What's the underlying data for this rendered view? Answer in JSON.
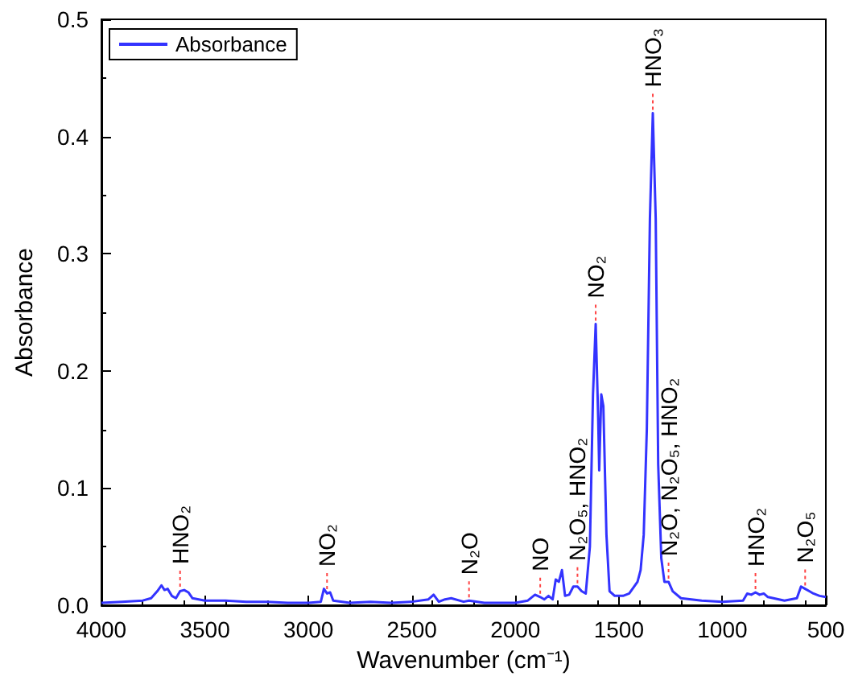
{
  "chart_data": {
    "type": "line",
    "xlabel": "Wavenumber (cm⁻¹)",
    "ylabel": "Absorbance",
    "xlim": [
      4000,
      500
    ],
    "xticks": [
      4000,
      3500,
      3000,
      2500,
      2000,
      1500,
      1000,
      500
    ],
    "ylim": [
      0,
      0.5
    ],
    "yticks": [
      {
        "value": 0,
        "label": "0.0"
      },
      {
        "value": 0.1,
        "label": "0.1"
      },
      {
        "value": 0.2,
        "label": "0.2"
      },
      {
        "value": 0.3,
        "label": "0.3"
      },
      {
        "value": 0.4,
        "label": "0.4"
      },
      {
        "value": 0.5,
        "label": "0.5"
      }
    ],
    "grid": false,
    "legend": "top left",
    "marker": "none",
    "line_style": "solid",
    "series": [
      {
        "name": "Absorbance",
        "color": "#3333ff",
        "x": [
          4000,
          3900,
          3800,
          3760,
          3730,
          3710,
          3695,
          3680,
          3660,
          3640,
          3620,
          3600,
          3580,
          3560,
          3500,
          3400,
          3300,
          3200,
          3100,
          3000,
          2940,
          2925,
          2910,
          2895,
          2880,
          2800,
          2700,
          2600,
          2500,
          2420,
          2395,
          2370,
          2340,
          2310,
          2250,
          2224,
          2150,
          2000,
          1940,
          1905,
          1880,
          1860,
          1840,
          1820,
          1805,
          1790,
          1775,
          1760,
          1740,
          1720,
          1700,
          1680,
          1660,
          1640,
          1625,
          1612,
          1600,
          1595,
          1585,
          1575,
          1560,
          1545,
          1520,
          1480,
          1450,
          1410,
          1395,
          1380,
          1365,
          1350,
          1336,
          1322,
          1310,
          1295,
          1280,
          1260,
          1240,
          1200,
          1100,
          1000,
          900,
          880,
          860,
          840,
          820,
          800,
          780,
          700,
          640,
          620,
          600,
          580,
          560,
          530,
          500
        ],
        "values": [
          0.002,
          0.003,
          0.004,
          0.006,
          0.012,
          0.017,
          0.013,
          0.014,
          0.008,
          0.006,
          0.012,
          0.013,
          0.011,
          0.006,
          0.004,
          0.004,
          0.003,
          0.003,
          0.002,
          0.002,
          0.003,
          0.014,
          0.01,
          0.011,
          0.004,
          0.002,
          0.003,
          0.002,
          0.003,
          0.005,
          0.009,
          0.003,
          0.005,
          0.006,
          0.003,
          0.004,
          0.002,
          0.002,
          0.004,
          0.009,
          0.007,
          0.005,
          0.008,
          0.005,
          0.022,
          0.02,
          0.03,
          0.008,
          0.009,
          0.016,
          0.016,
          0.012,
          0.01,
          0.05,
          0.18,
          0.24,
          0.16,
          0.115,
          0.18,
          0.17,
          0.06,
          0.012,
          0.008,
          0.008,
          0.01,
          0.02,
          0.03,
          0.06,
          0.15,
          0.33,
          0.42,
          0.33,
          0.12,
          0.04,
          0.02,
          0.02,
          0.012,
          0.006,
          0.004,
          0.003,
          0.004,
          0.01,
          0.009,
          0.011,
          0.009,
          0.01,
          0.007,
          0.004,
          0.006,
          0.016,
          0.014,
          0.012,
          0.01,
          0.008,
          0.007
        ]
      }
    ],
    "annotations": [
      {
        "text": "HNO₂",
        "x": 3620,
        "y": 0.013
      },
      {
        "text": "NO₂",
        "x": 2910,
        "y": 0.011
      },
      {
        "text": "N₂O",
        "x": 2224,
        "y": 0.004
      },
      {
        "text": "NO",
        "x": 1880,
        "y": 0.007
      },
      {
        "text": "N₂O₅, HNO₂",
        "x": 1700,
        "y": 0.016
      },
      {
        "text": "NO₂",
        "x": 1612,
        "y": 0.24
      },
      {
        "text": "HNO₃",
        "x": 1336,
        "y": 0.42
      },
      {
        "text": "N₂O, N₂O₅, HNO₂",
        "x": 1260,
        "y": 0.02
      },
      {
        "text": "HNO₂",
        "x": 840,
        "y": 0.011
      },
      {
        "text": "N₂O₅",
        "x": 600,
        "y": 0.014
      }
    ]
  }
}
